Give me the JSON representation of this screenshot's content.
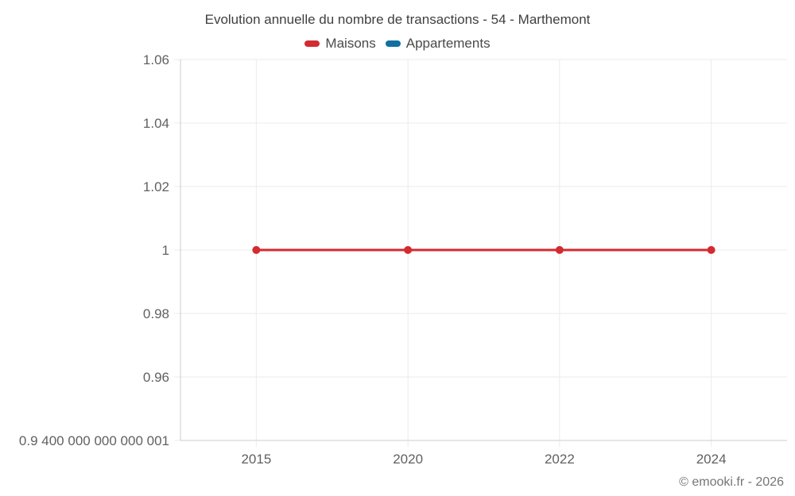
{
  "footer": "© emooki.fr - 2026",
  "colors": {
    "grid": "#ebebeb",
    "axis": "#cccccc",
    "tick_text": "#616161",
    "title_text": "#3f3f3f",
    "footer_text": "#757575"
  },
  "chart_data": {
    "type": "line",
    "title": "Evolution annuelle du nombre de transactions - 54 - Marthemont",
    "xlabel": "",
    "ylabel": "",
    "categories": [
      "2015",
      "2020",
      "2022",
      "2024"
    ],
    "series": [
      {
        "name": "Maisons",
        "color": "#d32b30",
        "values": [
          1,
          1,
          1,
          1
        ]
      },
      {
        "name": "Appartements",
        "color": "#1170a0",
        "values": []
      }
    ],
    "ylim": [
      0.94,
      1.06
    ],
    "y_ticks": [
      {
        "label": "1.06",
        "value": 1.06
      },
      {
        "label": "1.04",
        "value": 1.04
      },
      {
        "label": "1.02",
        "value": 1.02
      },
      {
        "label": "1",
        "value": 1
      },
      {
        "label": "0.98",
        "value": 0.98
      },
      {
        "label": "0.96",
        "value": 0.96
      },
      {
        "label": "0.9 400 000 000 000 001",
        "value": 0.94
      }
    ],
    "grid": true,
    "legend_position": "top"
  }
}
